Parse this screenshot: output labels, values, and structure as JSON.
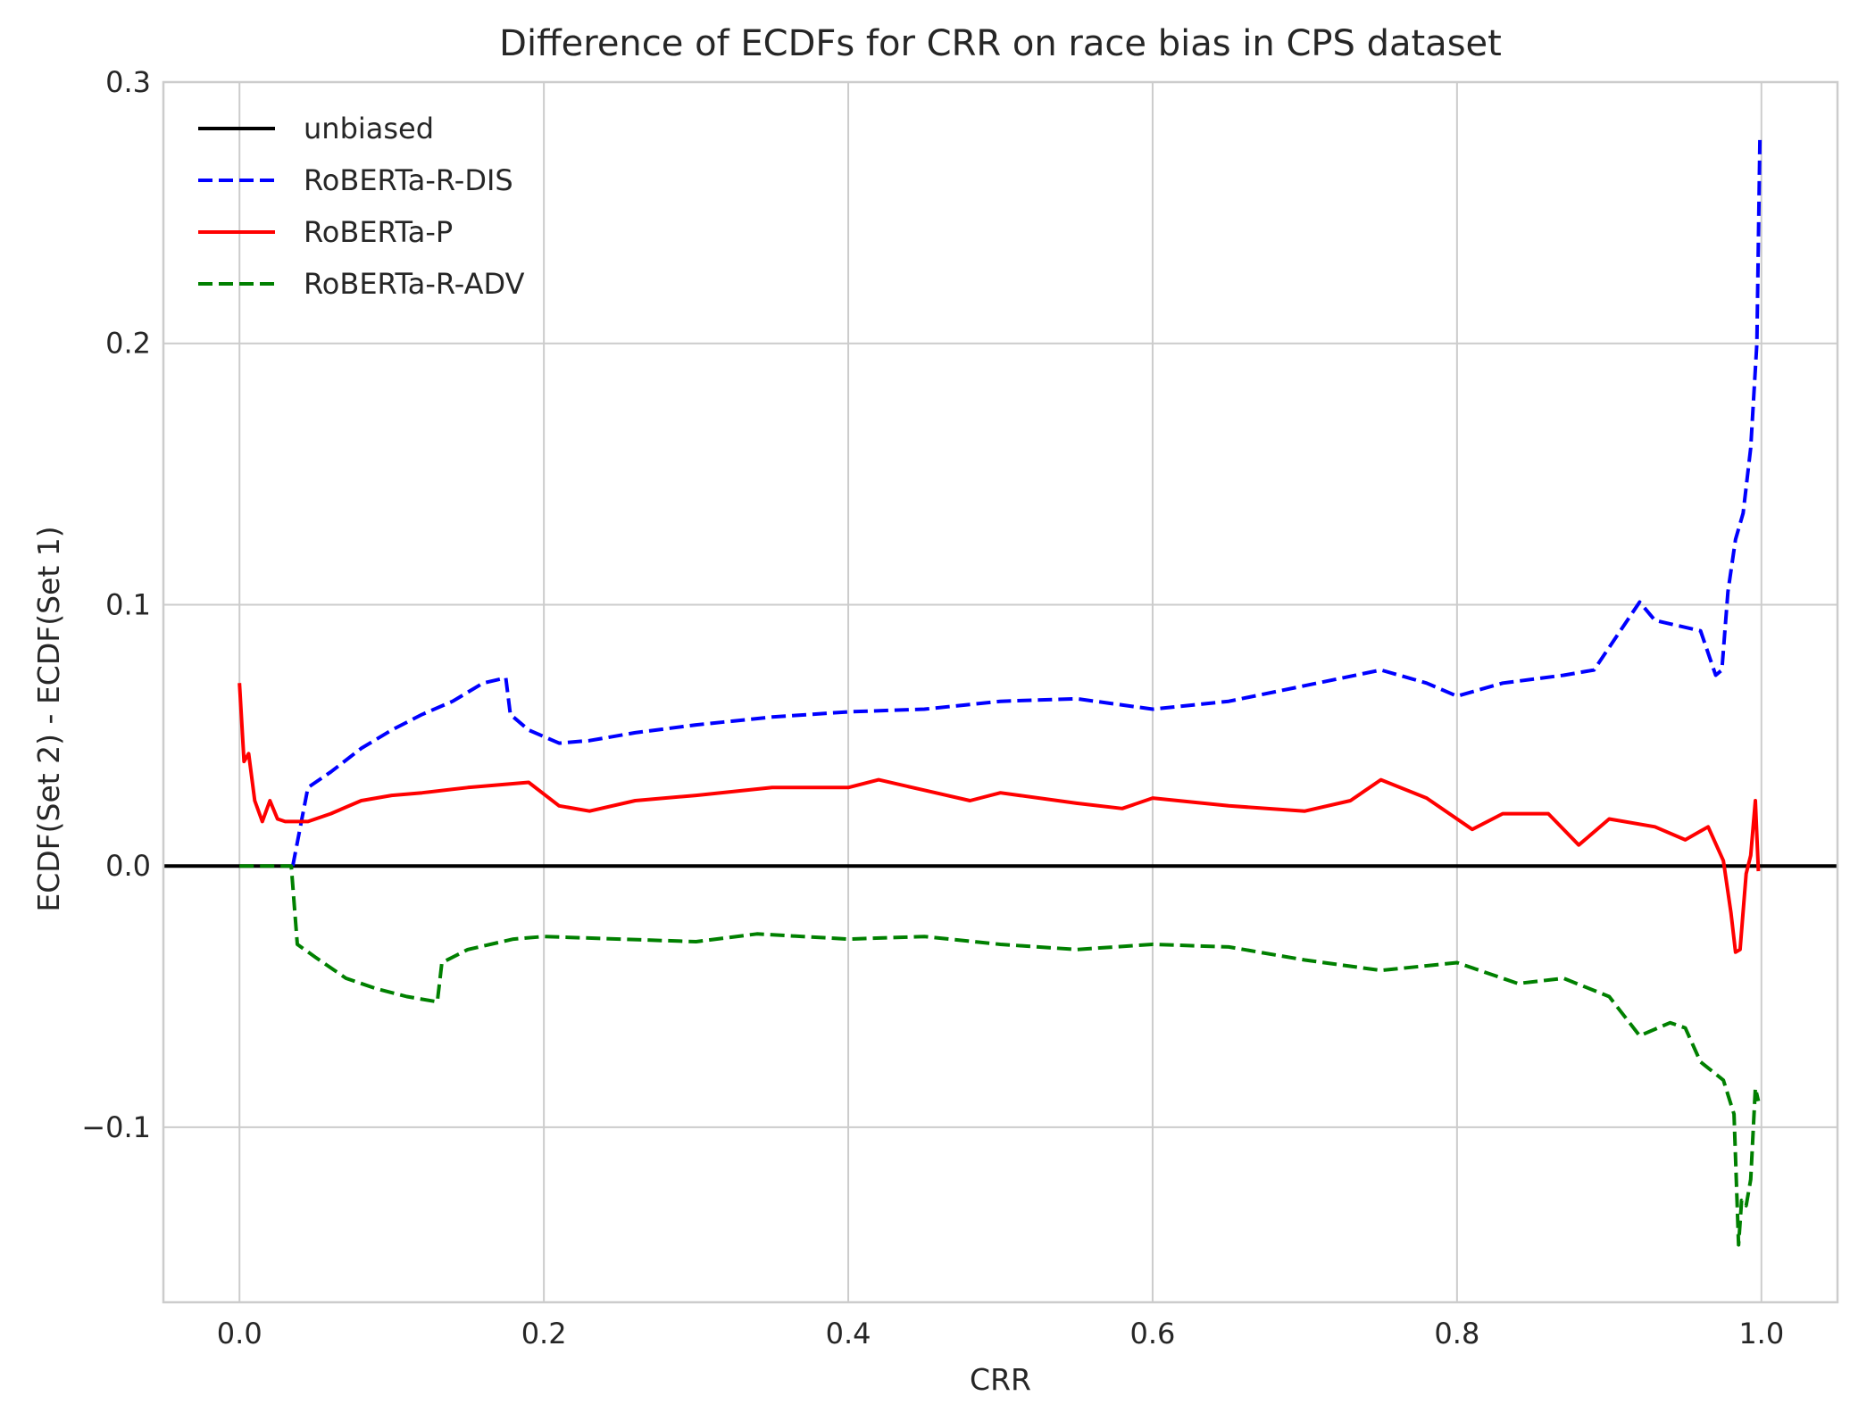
{
  "chart_data": {
    "type": "line",
    "title": "Difference of ECDFs for CRR on race bias in CPS dataset",
    "xlabel": "CRR",
    "ylabel": "ECDF(Set 2) - ECDF(Set 1)",
    "xlim": [
      -0.05,
      1.05
    ],
    "ylim": [
      -0.167,
      0.3
    ],
    "x_ticks": [
      0.0,
      0.2,
      0.4,
      0.6,
      0.8,
      1.0
    ],
    "x_tick_labels": [
      "0.0",
      "0.2",
      "0.4",
      "0.6",
      "0.8",
      "1.0"
    ],
    "y_ticks": [
      -0.1,
      0.0,
      0.1,
      0.2,
      0.3
    ],
    "y_tick_labels": [
      "−0.1",
      "0.0",
      "0.1",
      "0.2",
      "0.3"
    ],
    "grid": true,
    "legend_position": "top-left",
    "series": [
      {
        "name": "unbiased",
        "color": "#000000",
        "dash": "solid",
        "x": [
          -0.05,
          1.05
        ],
        "y": [
          0.0,
          0.0
        ]
      },
      {
        "name": "RoBERTa-R-DIS",
        "color": "#0000ff",
        "dash": "dashed",
        "x": [
          0.035,
          0.045,
          0.06,
          0.08,
          0.1,
          0.12,
          0.14,
          0.16,
          0.175,
          0.178,
          0.19,
          0.21,
          0.23,
          0.26,
          0.3,
          0.35,
          0.4,
          0.45,
          0.5,
          0.55,
          0.6,
          0.65,
          0.7,
          0.75,
          0.78,
          0.8,
          0.83,
          0.87,
          0.89,
          0.905,
          0.92,
          0.93,
          0.945,
          0.96,
          0.97,
          0.974,
          0.978,
          0.983,
          0.988,
          0.993,
          0.997,
          0.999
        ],
        "y": [
          0.0,
          0.03,
          0.036,
          0.045,
          0.052,
          0.058,
          0.063,
          0.07,
          0.072,
          0.058,
          0.052,
          0.047,
          0.048,
          0.051,
          0.054,
          0.057,
          0.059,
          0.06,
          0.063,
          0.064,
          0.06,
          0.063,
          0.069,
          0.075,
          0.07,
          0.065,
          0.07,
          0.073,
          0.075,
          0.088,
          0.101,
          0.094,
          0.092,
          0.09,
          0.073,
          0.075,
          0.105,
          0.125,
          0.135,
          0.16,
          0.2,
          0.278
        ]
      },
      {
        "name": "RoBERTa-P",
        "color": "#ff0000",
        "dash": "solid",
        "x": [
          0.0,
          0.003,
          0.006,
          0.01,
          0.015,
          0.02,
          0.025,
          0.03,
          0.045,
          0.06,
          0.08,
          0.1,
          0.12,
          0.15,
          0.19,
          0.21,
          0.23,
          0.26,
          0.3,
          0.35,
          0.4,
          0.42,
          0.45,
          0.48,
          0.5,
          0.55,
          0.58,
          0.6,
          0.65,
          0.7,
          0.73,
          0.75,
          0.78,
          0.81,
          0.83,
          0.86,
          0.88,
          0.9,
          0.93,
          0.95,
          0.965,
          0.975,
          0.98,
          0.983,
          0.986,
          0.99,
          0.993,
          0.996,
          0.998
        ],
        "y": [
          0.07,
          0.04,
          0.043,
          0.025,
          0.017,
          0.025,
          0.018,
          0.017,
          0.017,
          0.02,
          0.025,
          0.027,
          0.028,
          0.03,
          0.032,
          0.023,
          0.021,
          0.025,
          0.027,
          0.03,
          0.03,
          0.033,
          0.029,
          0.025,
          0.028,
          0.024,
          0.022,
          0.026,
          0.023,
          0.021,
          0.025,
          0.033,
          0.026,
          0.014,
          0.02,
          0.02,
          0.008,
          0.018,
          0.015,
          0.01,
          0.015,
          0.002,
          -0.018,
          -0.033,
          -0.032,
          -0.003,
          0.004,
          0.025,
          -0.002
        ]
      },
      {
        "name": "RoBERTa-R-ADV",
        "color": "#008000",
        "dash": "dashed",
        "x": [
          0.0,
          0.02,
          0.034,
          0.038,
          0.05,
          0.07,
          0.09,
          0.11,
          0.13,
          0.133,
          0.15,
          0.18,
          0.2,
          0.25,
          0.3,
          0.34,
          0.4,
          0.45,
          0.5,
          0.55,
          0.6,
          0.65,
          0.7,
          0.75,
          0.8,
          0.84,
          0.87,
          0.9,
          0.92,
          0.94,
          0.95,
          0.96,
          0.975,
          0.982,
          0.985,
          0.987,
          0.99,
          0.993,
          0.996,
          0.998
        ],
        "y": [
          0.0,
          0.0,
          0.0,
          -0.03,
          -0.035,
          -0.043,
          -0.047,
          -0.05,
          -0.052,
          -0.037,
          -0.032,
          -0.028,
          -0.027,
          -0.028,
          -0.029,
          -0.026,
          -0.028,
          -0.027,
          -0.03,
          -0.032,
          -0.03,
          -0.031,
          -0.036,
          -0.04,
          -0.037,
          -0.045,
          -0.043,
          -0.05,
          -0.065,
          -0.06,
          -0.062,
          -0.075,
          -0.082,
          -0.095,
          -0.145,
          -0.128,
          -0.13,
          -0.12,
          -0.085,
          -0.09
        ]
      }
    ]
  }
}
